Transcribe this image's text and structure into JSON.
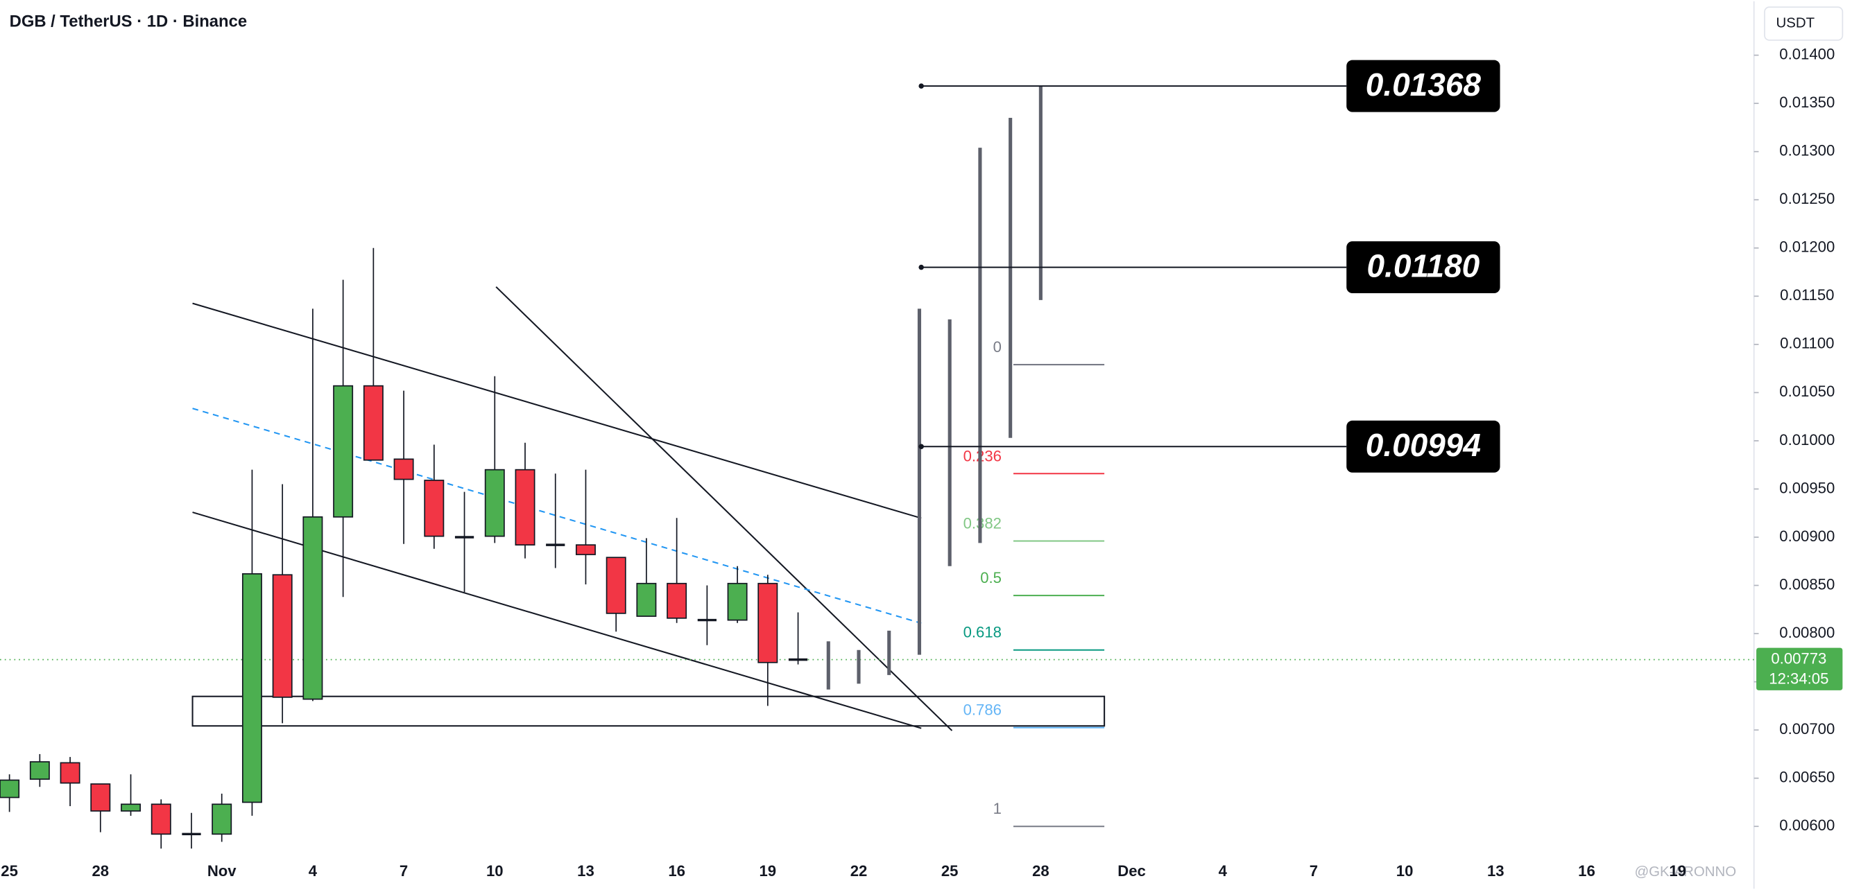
{
  "header": {
    "title": "DGB / TetherUS · 1D · Binance",
    "currency": "USDT",
    "watermark": "@GK-ARONNO"
  },
  "chart_data": {
    "type": "candlestick",
    "categories": [
      "25",
      null,
      null,
      "28",
      null,
      null,
      null,
      "Nov",
      null,
      null,
      "4",
      null,
      null,
      "7",
      null,
      null,
      "10",
      null,
      null,
      "13",
      null,
      null,
      "16",
      null,
      null,
      "19",
      null,
      null,
      "22",
      null,
      null,
      "25",
      null,
      null,
      "28",
      null,
      null,
      "Dec",
      null,
      null,
      "4",
      null,
      null,
      "7",
      null,
      null,
      "10",
      null,
      null,
      "13",
      null,
      null,
      "16",
      null,
      null,
      "19"
    ],
    "open": [
      0.0063,
      0.00649,
      0.00666,
      0.00644,
      0.00616,
      0.00623,
      0.00592,
      0.00592,
      0.00625,
      0.00861,
      0.00732,
      0.00921,
      0.01057,
      0.00981,
      0.00959,
      0.009,
      0.00901,
      0.0097,
      0.00892,
      0.00892,
      0.00879,
      0.00818,
      0.00852,
      0.00814,
      0.00814,
      0.00852,
      0.00773,
      null,
      null,
      null,
      null,
      null,
      null,
      null,
      null,
      null,
      null,
      null,
      null,
      null,
      null,
      null,
      null,
      null,
      null,
      null,
      null,
      null,
      null,
      null,
      null,
      null,
      null,
      null,
      null,
      null
    ],
    "high": [
      0.00654,
      0.00675,
      0.00672,
      0.00644,
      0.00654,
      0.00628,
      0.00614,
      0.00634,
      0.0097,
      0.00955,
      0.01137,
      0.01167,
      0.012,
      0.01052,
      0.00996,
      0.00947,
      0.01067,
      0.00998,
      0.00966,
      0.0097,
      0.00879,
      0.00899,
      0.0092,
      0.0085,
      0.0087,
      0.00861,
      0.00822,
      null,
      null,
      null,
      null,
      null,
      null,
      null,
      null,
      null,
      null,
      null,
      null,
      null,
      null,
      null,
      null,
      null,
      null,
      null,
      null,
      null,
      null,
      null,
      null,
      null,
      null,
      null,
      null,
      null
    ],
    "low": [
      0.00615,
      0.00641,
      0.00621,
      0.00594,
      0.00611,
      0.00577,
      0.00577,
      0.00584,
      0.00611,
      0.00707,
      0.0073,
      0.00838,
      0.0098,
      0.00893,
      0.00888,
      0.00843,
      0.00894,
      0.00878,
      0.00868,
      0.00851,
      0.00802,
      0.00818,
      0.00811,
      0.00788,
      0.00811,
      0.00725,
      0.00768,
      null,
      null,
      null,
      null,
      null,
      null,
      null,
      null,
      null,
      null,
      null,
      null,
      null,
      null,
      null,
      null,
      null,
      null,
      null,
      null,
      null,
      null,
      null,
      null,
      null,
      null,
      null,
      null,
      null
    ],
    "close": [
      0.00648,
      0.00667,
      0.00645,
      0.00616,
      0.00623,
      0.00592,
      0.00592,
      0.00623,
      0.00862,
      0.00734,
      0.00921,
      0.01057,
      0.0098,
      0.0096,
      0.00901,
      0.009,
      0.0097,
      0.00892,
      0.00892,
      0.00882,
      0.00821,
      0.00852,
      0.00816,
      0.00814,
      0.00852,
      0.0077,
      0.00773,
      null,
      null,
      null,
      null,
      null,
      null,
      null,
      null,
      null,
      null,
      null,
      null,
      null,
      null,
      null,
      null,
      null,
      null,
      null,
      null,
      null,
      null,
      null,
      null,
      null,
      null,
      null,
      null,
      null
    ],
    "up_color": "#4caf50",
    "down_color": "#f23645",
    "projection": {
      "color": "#5d606b",
      "low": [
        null,
        null,
        null,
        null,
        null,
        null,
        null,
        null,
        null,
        null,
        null,
        null,
        null,
        null,
        null,
        null,
        null,
        null,
        null,
        null,
        null,
        null,
        null,
        null,
        null,
        null,
        null,
        0.00742,
        0.00748,
        0.00757,
        0.00778,
        0.0087,
        0.00894,
        0.01003,
        0.01146,
        null,
        null,
        null,
        null,
        null,
        null,
        null,
        null,
        null,
        null,
        null,
        null,
        null,
        null,
        null,
        null,
        null,
        null,
        null,
        null,
        null
      ],
      "high": [
        null,
        null,
        null,
        null,
        null,
        null,
        null,
        null,
        null,
        null,
        null,
        null,
        null,
        null,
        null,
        null,
        null,
        null,
        null,
        null,
        null,
        null,
        null,
        null,
        null,
        null,
        null,
        0.00792,
        0.00783,
        0.00803,
        0.01137,
        0.01126,
        0.01304,
        0.01335,
        0.01368,
        null,
        null,
        null,
        null,
        null,
        null,
        null,
        null,
        null,
        null,
        null,
        null,
        null,
        null,
        null,
        null,
        null,
        null,
        null,
        null,
        null
      ]
    },
    "targets": [
      {
        "value": 0.01368,
        "label": "0.01368"
      },
      {
        "value": 0.0118,
        "label": "0.01180"
      },
      {
        "value": 0.00994,
        "label": "0.00994"
      }
    ],
    "fib": {
      "high": 0.01079,
      "low": 0.006,
      "levels": [
        0,
        0.236,
        0.382,
        0.5,
        0.618,
        0.786,
        1
      ],
      "colors": [
        "#787b86",
        "#f23645",
        "#81c784",
        "#4caf50",
        "#089981",
        "#64b5f6",
        "#787b86"
      ]
    },
    "last_price": 0.00773,
    "countdown": "12:34:05",
    "last_price_color": "#4caf50",
    "ylim": [
      0.00572,
      0.01456
    ],
    "yticks": [
      {
        "value": 0.006,
        "label": "0.00600"
      },
      {
        "value": 0.0065,
        "label": "0.00650"
      },
      {
        "value": 0.007,
        "label": "0.00700"
      },
      {
        "value": 0.0075,
        "label": "0.00750"
      },
      {
        "value": 0.008,
        "label": "0.00800"
      },
      {
        "value": 0.0085,
        "label": "0.00850"
      },
      {
        "value": 0.009,
        "label": "0.00900"
      },
      {
        "value": 0.0095,
        "label": "0.00950"
      },
      {
        "value": 0.01,
        "label": "0.01000"
      },
      {
        "value": 0.0105,
        "label": "0.01050"
      },
      {
        "value": 0.011,
        "label": "0.01100"
      },
      {
        "value": 0.0115,
        "label": "0.01150"
      },
      {
        "value": 0.012,
        "label": "0.01200"
      },
      {
        "value": 0.0125,
        "label": "0.01250"
      },
      {
        "value": 0.013,
        "label": "0.01300"
      },
      {
        "value": 0.0135,
        "label": "0.01350"
      },
      {
        "value": 0.014,
        "label": "0.01400"
      }
    ]
  }
}
